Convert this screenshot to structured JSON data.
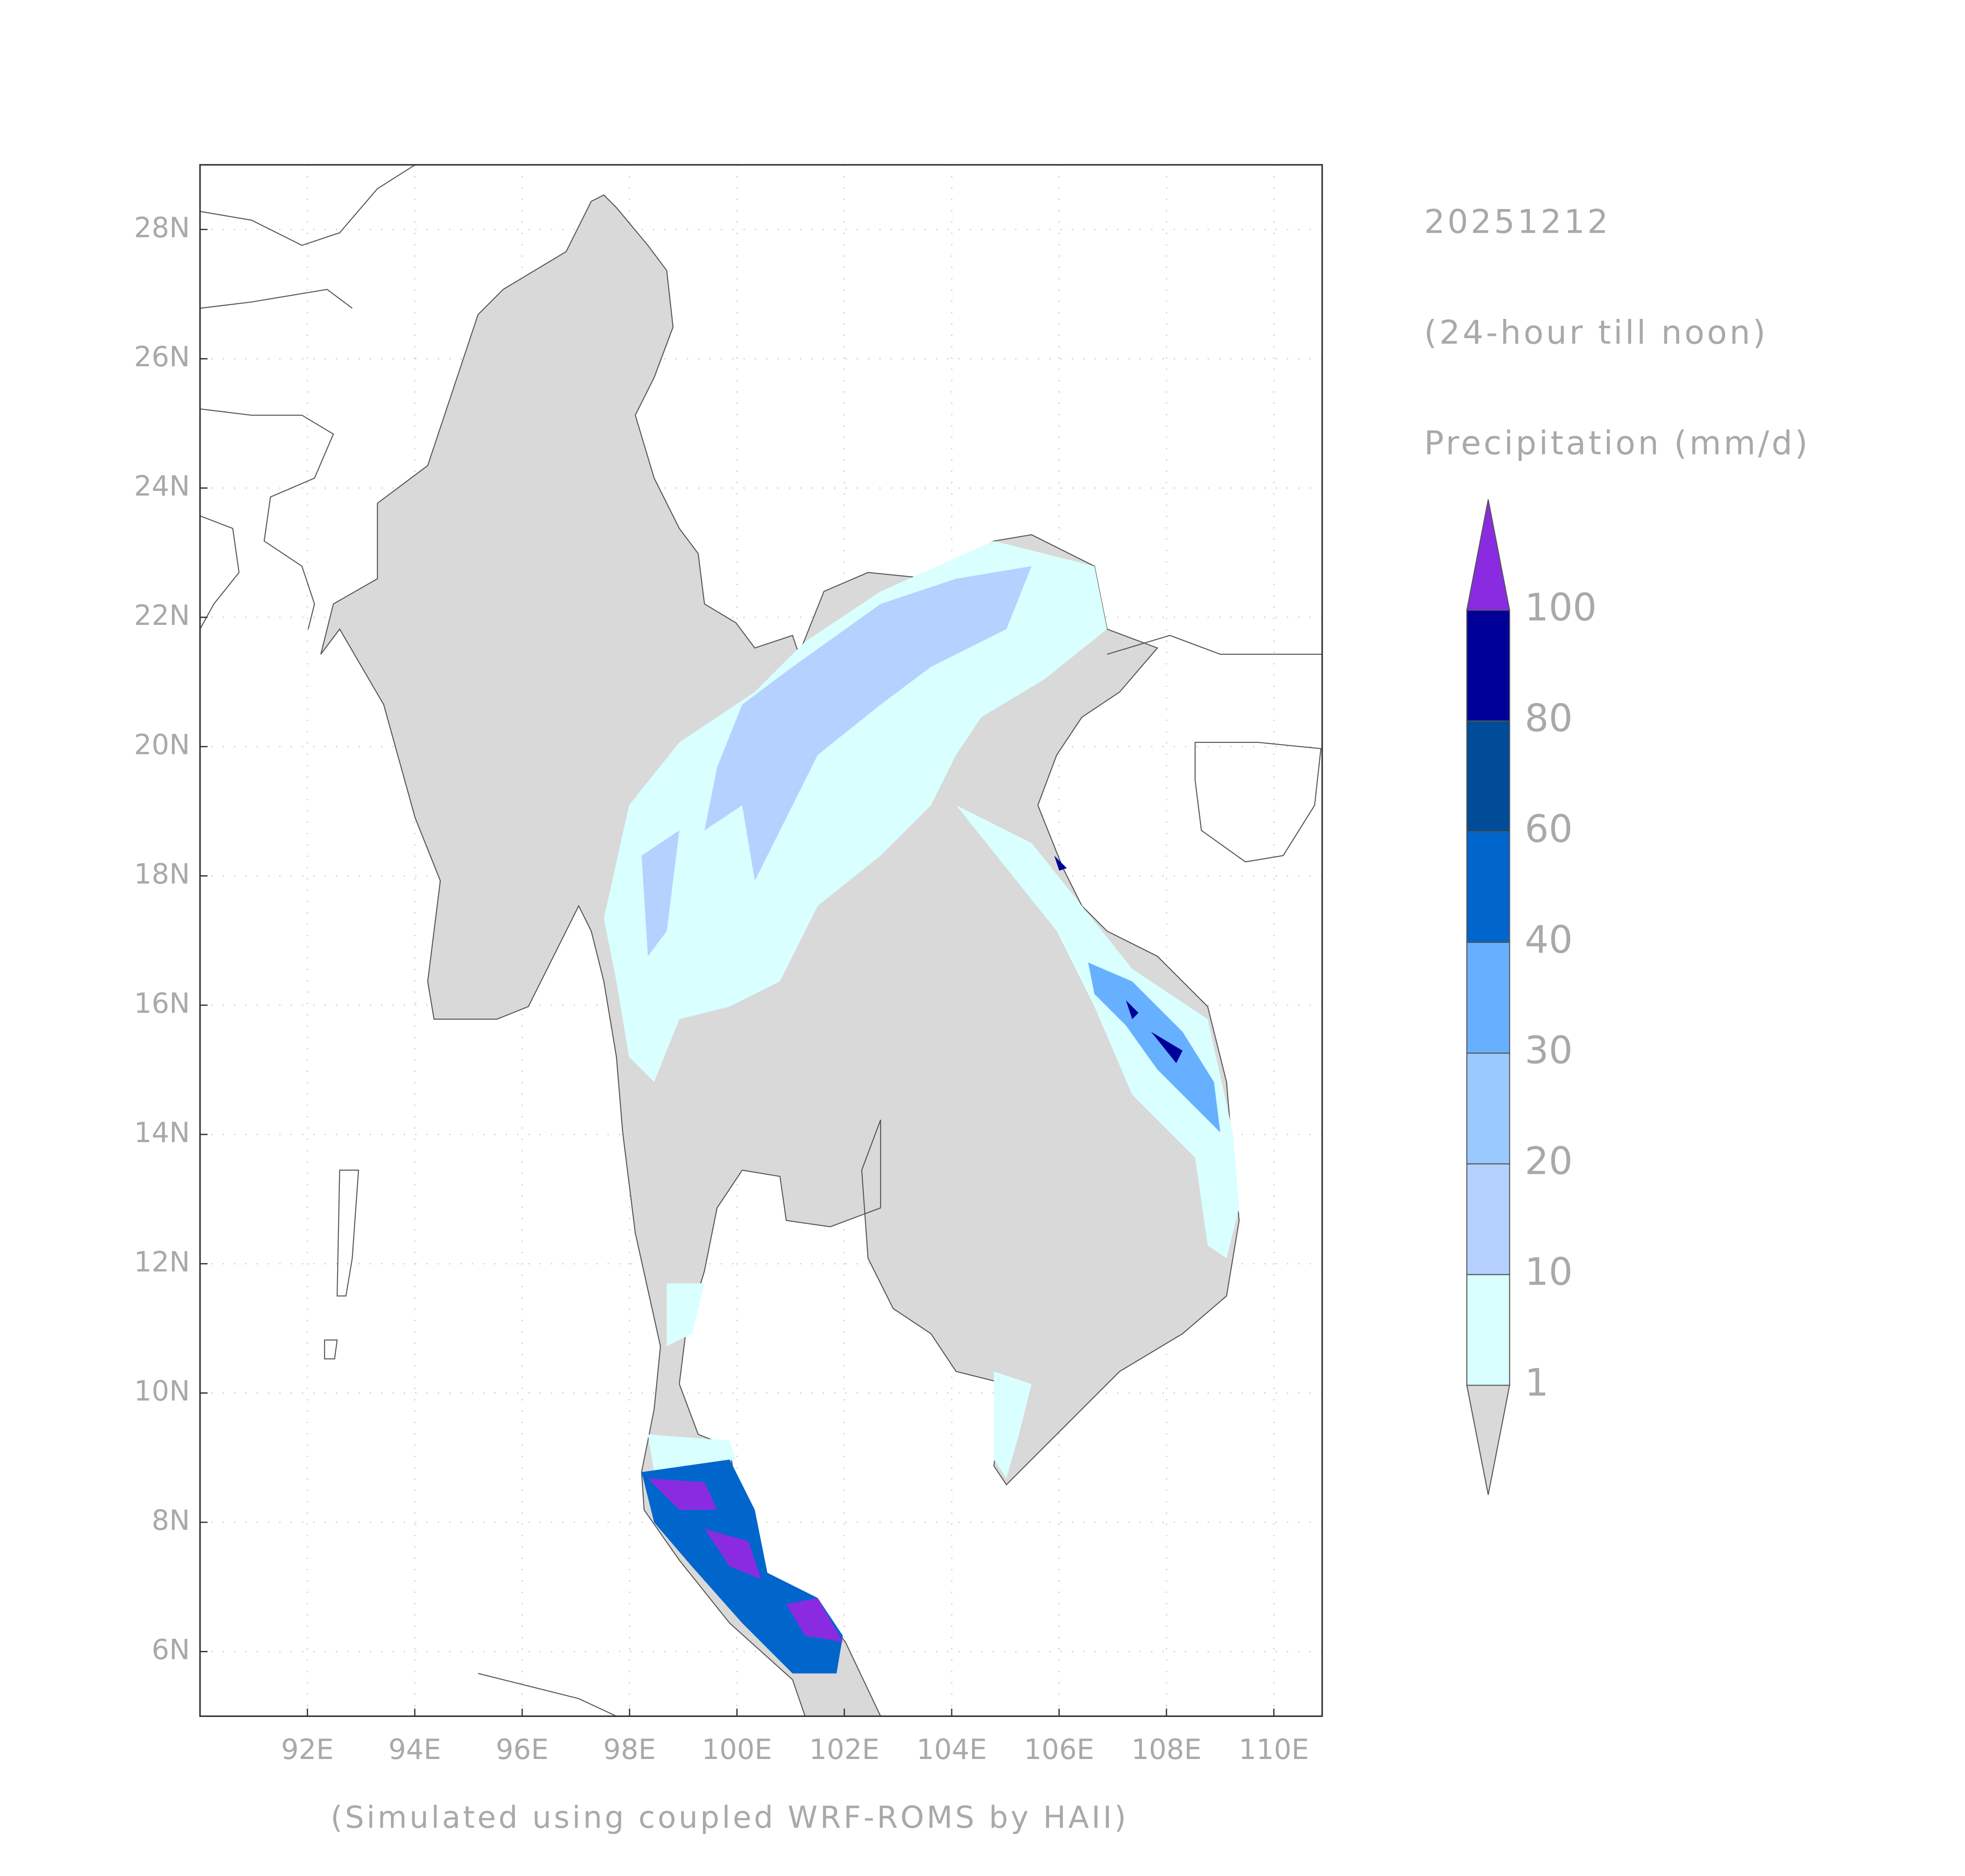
{
  "map": {
    "date": "20251212",
    "period": "(24-hour till noon)",
    "variable": "Precipitation (mm/d)",
    "footer": "(Simulated using coupled WRF-ROMS by HAII)",
    "xlim": [
      90,
      110.9
    ],
    "ylim": [
      5,
      29
    ],
    "xticks": [
      {
        "value": 92,
        "label": "92E"
      },
      {
        "value": 94,
        "label": "94E"
      },
      {
        "value": 96,
        "label": "96E"
      },
      {
        "value": 98,
        "label": "98E"
      },
      {
        "value": 100,
        "label": "100E"
      },
      {
        "value": 102,
        "label": "102E"
      },
      {
        "value": 104,
        "label": "104E"
      },
      {
        "value": 106,
        "label": "106E"
      },
      {
        "value": 108,
        "label": "108E"
      },
      {
        "value": 110,
        "label": "110E"
      }
    ],
    "yticks": [
      {
        "value": 6,
        "label": "6N"
      },
      {
        "value": 8,
        "label": "8N"
      },
      {
        "value": 10,
        "label": "10N"
      },
      {
        "value": 12,
        "label": "12N"
      },
      {
        "value": 14,
        "label": "14N"
      },
      {
        "value": 16,
        "label": "16N"
      },
      {
        "value": 18,
        "label": "18N"
      },
      {
        "value": 20,
        "label": "20N"
      },
      {
        "value": 22,
        "label": "22N"
      },
      {
        "value": 24,
        "label": "24N"
      },
      {
        "value": 26,
        "label": "26N"
      },
      {
        "value": 28,
        "label": "28N"
      }
    ],
    "grid": true,
    "legend": {
      "levels": [
        1,
        10,
        20,
        30,
        40,
        60,
        80,
        100
      ],
      "colors": [
        "#d9d9d9",
        "#d9ffff",
        "#b5d1ff",
        "#99c9ff",
        "#66b0ff",
        "#0066cc",
        "#004c99",
        "#000099",
        "#8a2be2"
      ]
    }
  }
}
